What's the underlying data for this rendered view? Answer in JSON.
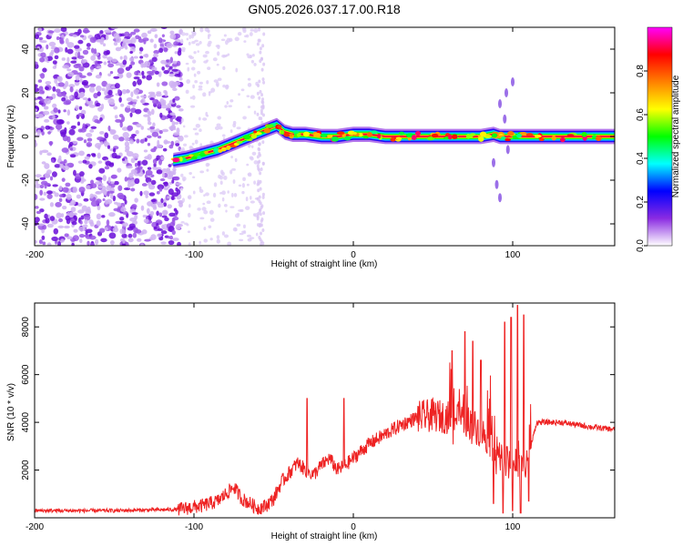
{
  "figure": {
    "title": "GN05.2026.037.17.00.R18"
  },
  "chart_data": [
    {
      "type": "heatmap",
      "title": "GN05.2026.037.17.00.R18",
      "xlabel": "Height of straight line (km)",
      "ylabel": "Frequency (Hz)",
      "xlim": [
        -200,
        164
      ],
      "ylim": [
        -50,
        50
      ],
      "x_ticks": [
        -200,
        -100,
        0,
        100
      ],
      "y_ticks": [
        -40,
        -20,
        0,
        20,
        40
      ],
      "colorbar": {
        "label": "Normalized spectral amplitude",
        "range": [
          0,
          1
        ],
        "ticks": [
          0.0,
          0.2,
          0.4,
          0.6,
          0.8
        ],
        "tick_labels": [
          "0.0",
          "0.2",
          "0.4",
          "0.6",
          "0.8"
        ],
        "colormap": [
          "#ffffff",
          "#8a2be2",
          "#0000ff",
          "#00ffff",
          "#00ff00",
          "#ffff00",
          "#ff8000",
          "#ff0000",
          "#ff00ff"
        ]
      },
      "noise_region": {
        "x_range": [
          -200,
          -108
        ],
        "freq_range": [
          -50,
          50
        ],
        "sparse_x_range": [
          -108,
          -60
        ]
      },
      "ridge": {
        "x": [
          -113,
          -105,
          -95,
          -85,
          -75,
          -65,
          -55,
          -48,
          -43,
          -38,
          -30,
          -20,
          -10,
          0,
          10,
          20,
          30,
          40,
          50,
          60,
          70,
          80,
          88,
          92,
          96,
          100,
          110,
          120,
          140,
          164
        ],
        "freq": [
          -11,
          -10,
          -8,
          -6,
          -3,
          0,
          3,
          5,
          2,
          1,
          1,
          0,
          0,
          1,
          1,
          0,
          0,
          0,
          0,
          0,
          0,
          0,
          1,
          0,
          0,
          0,
          0,
          0,
          0,
          0
        ]
      }
    },
    {
      "type": "line",
      "xlabel": "Height of straight line (km)",
      "ylabel": "SNR (10 * v/v)",
      "xlim": [
        -200,
        164
      ],
      "ylim": [
        0,
        9000
      ],
      "x_ticks": [
        -200,
        -100,
        0,
        100
      ],
      "y_ticks": [
        2000,
        4000,
        6000,
        8000
      ],
      "series": [
        {
          "color": "#ee2222",
          "x": [
            -200,
            -150,
            -110,
            -95,
            -85,
            -80,
            -75,
            -70,
            -65,
            -60,
            -55,
            -50,
            -45,
            -40,
            -35,
            -30,
            -25,
            -20,
            -15,
            -10,
            -5,
            0,
            5,
            10,
            20,
            30,
            40,
            50,
            60,
            65,
            70,
            75,
            80,
            85,
            90,
            95,
            100,
            105,
            110,
            115,
            120,
            130,
            140,
            150,
            164
          ],
          "y": [
            300,
            300,
            350,
            500,
            700,
            1000,
            1300,
            800,
            600,
            400,
            500,
            800,
            1500,
            1900,
            2300,
            2000,
            1800,
            2200,
            2500,
            2000,
            2200,
            2500,
            2800,
            3100,
            3500,
            3900,
            4200,
            4300,
            4200,
            4200,
            4100,
            3900,
            3600,
            3300,
            2800,
            2200,
            2600,
            2000,
            2600,
            4000,
            4000,
            4000,
            3900,
            3800,
            3700
          ]
        }
      ],
      "spikes": [
        {
          "x": -29,
          "y": 5000
        },
        {
          "x": -6,
          "y": 5000
        },
        {
          "x": 62,
          "y": 7000
        },
        {
          "x": 70,
          "y": 7800
        },
        {
          "x": 75,
          "y": 7400
        },
        {
          "x": 80,
          "y": 6600
        },
        {
          "x": 88,
          "y": 7300
        },
        {
          "x": 95,
          "y": 8200
        },
        {
          "x": 99,
          "y": 8400
        },
        {
          "x": 103,
          "y": 8900
        },
        {
          "x": 107,
          "y": 8500
        }
      ],
      "dips": [
        {
          "x": 88,
          "y": 600
        },
        {
          "x": 94,
          "y": 200
        },
        {
          "x": 100,
          "y": 300
        },
        {
          "x": 105,
          "y": 200
        },
        {
          "x": 110,
          "y": 700
        }
      ]
    }
  ]
}
